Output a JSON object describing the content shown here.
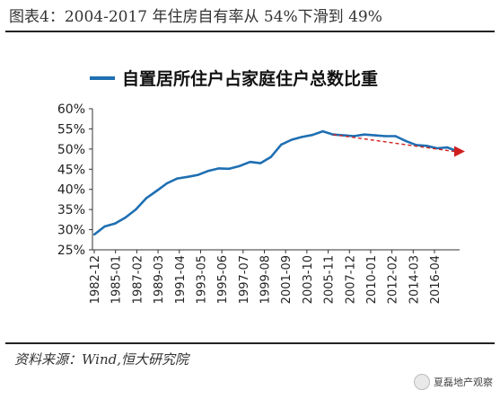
{
  "figure": {
    "title": "图表4：2004-2017 年住房自有率从 54%下滑到 49%",
    "source": "资料来源：Wind,恒大研究院",
    "watermark": "夏磊地产观察"
  },
  "colors": {
    "series": "#1f6fb2",
    "trend": "#d11f1f",
    "rule": "#222222",
    "axis": "#333333"
  },
  "chart_data": {
    "type": "line",
    "title": "",
    "xlabel": "",
    "ylabel": "",
    "ylim": [
      25,
      60
    ],
    "yticks": [
      "25%",
      "30%",
      "35%",
      "40%",
      "45%",
      "50%",
      "55%",
      "60%"
    ],
    "xticks": [
      "1982-12",
      "1985-01",
      "1987-02",
      "1989-03",
      "1991-04",
      "1993-05",
      "1995-06",
      "1997-07",
      "1999-08",
      "2001-09",
      "2003-10",
      "2005-11",
      "2007-12",
      "2010-01",
      "2012-02",
      "2014-03",
      "2016-04"
    ],
    "grid": false,
    "legend": "top",
    "series": [
      {
        "name": "自置居所住户占家庭住户总数比重",
        "values": [
          28.8,
          30.8,
          31.5,
          33.0,
          35.0,
          37.8,
          39.6,
          41.5,
          42.7,
          43.1,
          43.6,
          44.6,
          45.2,
          45.1,
          45.8,
          46.8,
          46.5,
          48.0,
          51.1,
          52.3,
          53.0,
          53.5,
          54.4,
          53.6,
          53.4,
          53.2,
          53.6,
          53.4,
          53.2,
          53.2,
          52.0,
          51.0,
          50.8,
          50.2,
          50.4,
          49.4
        ]
      }
    ],
    "annotations": [
      {
        "type": "trend-arrow",
        "from": [
          53.6,
          53.4
        ],
        "to": [
          49.4
        ],
        "description": ""
      }
    ]
  }
}
